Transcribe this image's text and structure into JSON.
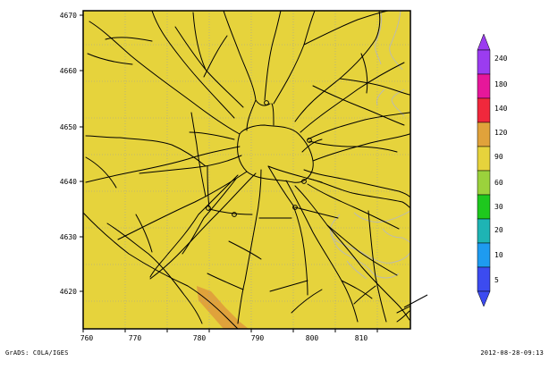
{
  "map": {
    "x_ticks": [
      "760",
      "770",
      "780",
      "790",
      "800",
      "810"
    ],
    "y_ticks": [
      "4670",
      "4660",
      "4650",
      "4640",
      "4630",
      "4620"
    ],
    "fill_color": "#e6d33c",
    "higher_band_color": "#e0a23b",
    "road_color": "#000000",
    "contour_color": "#b9b9b9",
    "grid_color": "#a0a0a0"
  },
  "colorbar": {
    "bins": [
      {
        "label": "240",
        "color": "#9b3cf0"
      },
      {
        "label": "180",
        "color": "#e6179a"
      },
      {
        "label": "140",
        "color": "#f0283c"
      },
      {
        "label": "120",
        "color": "#e0a23b"
      },
      {
        "label": "90",
        "color": "#e6d33c"
      },
      {
        "label": "60",
        "color": "#9bd23c"
      },
      {
        "label": "30",
        "color": "#1ec81e"
      },
      {
        "label": "20",
        "color": "#1eb4b4"
      },
      {
        "label": "10",
        "color": "#1e9bf0"
      },
      {
        "label": "5",
        "color": "#3c4bf0"
      }
    ],
    "top_arrow_color": "#9b3cf0",
    "bottom_arrow_color": "#3c4bf0"
  },
  "footer": {
    "left": "GrADS: COLA/IGES",
    "right": "2012-08-28-09:13"
  }
}
